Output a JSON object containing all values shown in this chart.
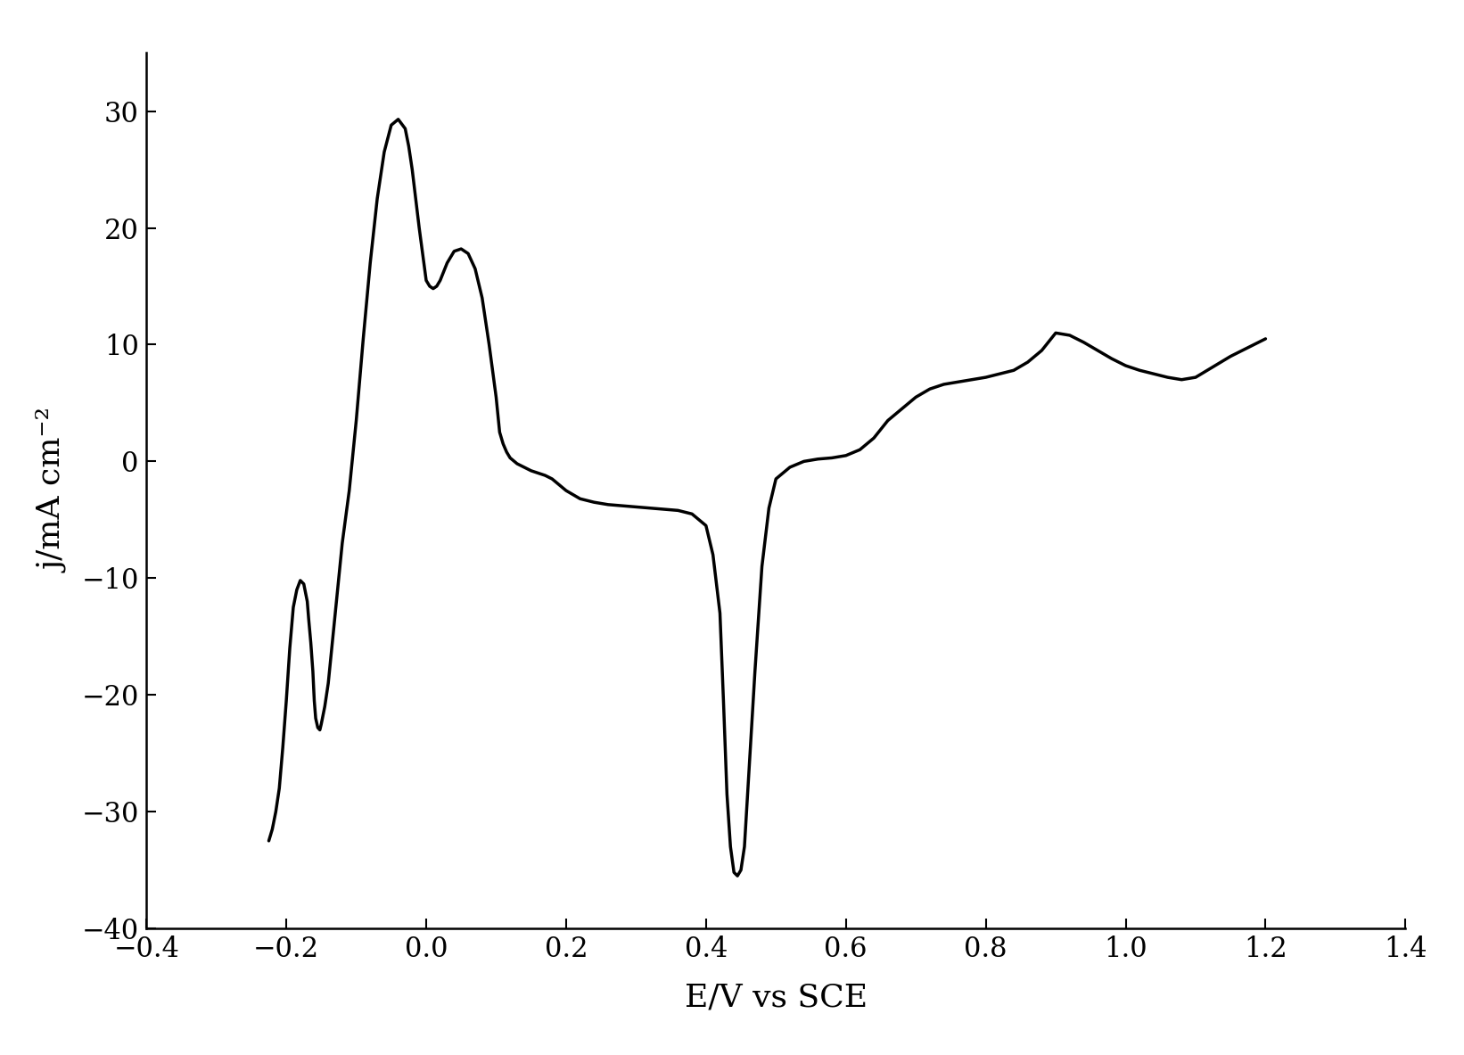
{
  "title": "",
  "xlabel": "E/V vs SCE",
  "ylabel": "j/mA cm⁻²",
  "xlim": [
    -0.4,
    1.4
  ],
  "ylim": [
    -40,
    35
  ],
  "xticks": [
    -0.4,
    -0.2,
    0.0,
    0.2,
    0.4,
    0.6,
    0.8,
    1.0,
    1.2,
    1.4
  ],
  "yticks": [
    -40,
    -30,
    -20,
    -10,
    0,
    10,
    20,
    30
  ],
  "line_color": "#000000",
  "line_width": 2.5,
  "background_color": "#ffffff",
  "xlabel_fontsize": 26,
  "ylabel_fontsize": 26,
  "tick_fontsize": 22,
  "cv_x": [
    -0.225,
    -0.22,
    -0.215,
    -0.21,
    -0.205,
    -0.2,
    -0.195,
    -0.19,
    -0.185,
    -0.18,
    -0.175,
    -0.17,
    -0.168,
    -0.165,
    -0.162,
    -0.16,
    -0.158,
    -0.155,
    -0.152,
    -0.15,
    -0.145,
    -0.14,
    -0.135,
    -0.13,
    -0.125,
    -0.12,
    -0.11,
    -0.1,
    -0.09,
    -0.08,
    -0.07,
    -0.06,
    -0.05,
    -0.04,
    -0.03,
    -0.025,
    -0.02,
    -0.01,
    0.0,
    0.005,
    0.01,
    0.015,
    0.02,
    0.03,
    0.04,
    0.05,
    0.06,
    0.07,
    0.08,
    0.09,
    0.1,
    0.105,
    0.11,
    0.115,
    0.12,
    0.13,
    0.14,
    0.15,
    0.16,
    0.17,
    0.18,
    0.2,
    0.22,
    0.24,
    0.26,
    0.28,
    0.3,
    0.32,
    0.34,
    0.36,
    0.38,
    0.4,
    0.41,
    0.42,
    0.425,
    0.43,
    0.435,
    0.44,
    0.445,
    0.45,
    0.455,
    0.46,
    0.47,
    0.48,
    0.49,
    0.5,
    0.52,
    0.54,
    0.56,
    0.58,
    0.6,
    0.62,
    0.64,
    0.66,
    0.68,
    0.7,
    0.72,
    0.74,
    0.76,
    0.78,
    0.8,
    0.82,
    0.84,
    0.86,
    0.88,
    0.9,
    0.92,
    0.94,
    0.96,
    0.98,
    1.0,
    1.02,
    1.04,
    1.06,
    1.08,
    1.1,
    1.15,
    1.2
  ],
  "cv_y": [
    -32.5,
    -31.5,
    -30.0,
    -28.0,
    -24.5,
    -20.5,
    -16.0,
    -12.5,
    -11.0,
    -10.2,
    -10.5,
    -12.0,
    -13.5,
    -15.5,
    -18.0,
    -20.5,
    -22.0,
    -22.8,
    -23.0,
    -22.5,
    -21.0,
    -19.0,
    -16.0,
    -13.0,
    -10.0,
    -7.0,
    -2.5,
    3.5,
    10.5,
    17.0,
    22.5,
    26.5,
    28.8,
    29.3,
    28.5,
    27.0,
    25.0,
    20.0,
    15.5,
    15.0,
    14.8,
    15.0,
    15.5,
    17.0,
    18.0,
    18.2,
    17.8,
    16.5,
    14.0,
    10.0,
    5.5,
    2.5,
    1.5,
    0.8,
    0.3,
    -0.2,
    -0.5,
    -0.8,
    -1.0,
    -1.2,
    -1.5,
    -2.5,
    -3.2,
    -3.5,
    -3.7,
    -3.8,
    -3.9,
    -4.0,
    -4.1,
    -4.2,
    -4.5,
    -5.5,
    -8.0,
    -13.0,
    -20.5,
    -28.5,
    -33.0,
    -35.2,
    -35.5,
    -35.0,
    -33.0,
    -28.0,
    -18.0,
    -9.0,
    -4.0,
    -1.5,
    -0.5,
    0.0,
    0.2,
    0.3,
    0.5,
    1.0,
    2.0,
    3.5,
    4.5,
    5.5,
    6.2,
    6.6,
    6.8,
    7.0,
    7.2,
    7.5,
    7.8,
    8.5,
    9.5,
    11.0,
    10.8,
    10.2,
    9.5,
    8.8,
    8.2,
    7.8,
    7.5,
    7.2,
    7.0,
    7.2,
    9.0,
    10.5
  ]
}
